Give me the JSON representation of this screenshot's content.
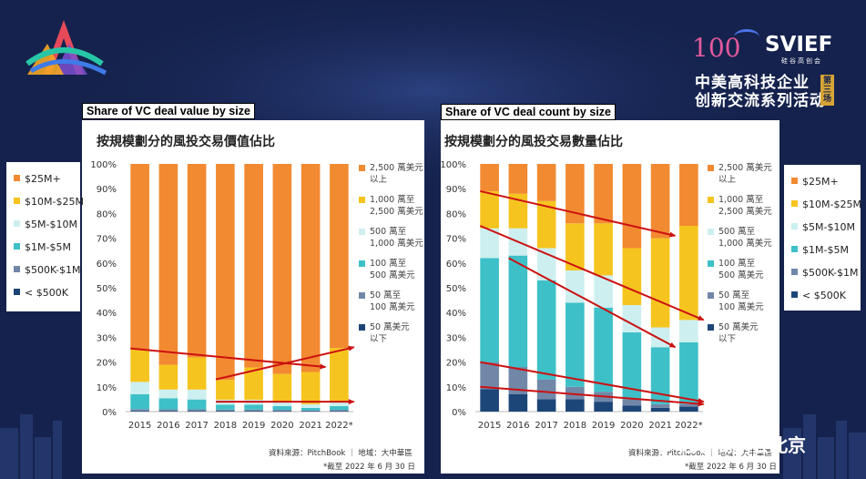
{
  "header": {
    "brand": "SVIEF",
    "brand_cn": "硅谷高创会",
    "badge_num": "100",
    "line1": "中美高科技企业",
    "line2": "创新交流系列活动",
    "session": "第三场"
  },
  "watermark": "硅谷高创会北京",
  "colors": {
    "c25m": "#f28a32",
    "c10m": "#f6c41f",
    "c5m": "#cdeff0",
    "c1m": "#3ec0c8",
    "c500k": "#7087a8",
    "clt500k": "#1d4678",
    "arrow": "#cc1111",
    "navy": "#15224d"
  },
  "legend_en": [
    {
      "label": "$25M+",
      "key": "c25m"
    },
    {
      "label": "$10M-$25M",
      "key": "c10m"
    },
    {
      "label": "$5M-$10M",
      "key": "c5m"
    },
    {
      "label": "$1M-$5M",
      "key": "c1m"
    },
    {
      "label": "$500K-$1M",
      "key": "c500k"
    },
    {
      "label": "< $500K",
      "key": "clt500k"
    }
  ],
  "legend_en_right": [
    {
      "label": "$25M+",
      "key": "c25m"
    },
    {
      "label": "$10M-$25M",
      "key": "c10m"
    },
    {
      "label": "$5M-$10M",
      "key": "c5m"
    },
    {
      "label": "$1M-$5M",
      "key": "c1m"
    },
    {
      "label": "$500K-$1M",
      "key": "c500k"
    },
    {
      "label": "< $500K",
      "key": "clt500k"
    }
  ],
  "legend_cn": [
    {
      "l1": "2,500 萬美元",
      "l2": "以上",
      "key": "c25m"
    },
    {
      "l1": "1,000 萬至",
      "l2": "2,500 萬美元",
      "key": "c10m"
    },
    {
      "l1": "500 萬至",
      "l2": "1,000 萬美元",
      "key": "c5m"
    },
    {
      "l1": "100 萬至",
      "l2": "500 萬美元",
      "key": "c1m"
    },
    {
      "l1": "50 萬至",
      "l2": "100 萬美元",
      "key": "c500k"
    },
    {
      "l1": "50 萬美元",
      "l2": "以下",
      "key": "clt500k"
    }
  ],
  "chart_data": [
    {
      "type": "bar",
      "stacked": true,
      "title": "Share of VC deal value by size",
      "subtitle": "按規模劃分的風投交易價值佔比",
      "categories": [
        "2015",
        "2016",
        "2017",
        "2018",
        "2019",
        "2020",
        "2021",
        "2022*"
      ],
      "ylim": [
        0,
        100
      ],
      "yticks": [
        "0%",
        "10%",
        "20%",
        "30%",
        "40%",
        "50%",
        "60%",
        "70%",
        "80%",
        "90%",
        "100%"
      ],
      "series": [
        {
          "name": "< $500K",
          "key": "clt500k",
          "values": [
            0.3,
            0.3,
            0.3,
            0.3,
            0.3,
            0.3,
            0.2,
            0.3
          ]
        },
        {
          "name": "$500K-$1M",
          "key": "c500k",
          "values": [
            0.7,
            0.6,
            0.6,
            0.5,
            0.5,
            0.4,
            0.3,
            0.4
          ]
        },
        {
          "name": "$1M-$5M",
          "key": "c1m",
          "values": [
            6,
            4.5,
            4,
            2,
            2,
            1.5,
            1,
            1.5
          ]
        },
        {
          "name": "$5M-$10M",
          "key": "c5m",
          "values": [
            5,
            3.5,
            4,
            2,
            2,
            2,
            1.5,
            1.5
          ]
        },
        {
          "name": "$10M-$25M",
          "key": "c10m",
          "values": [
            13,
            10,
            13,
            8,
            13,
            11,
            13,
            22
          ]
        },
        {
          "name": "$25M+",
          "key": "c25m",
          "values": [
            75,
            81.1,
            78.1,
            87.2,
            82.2,
            84.8,
            84,
            74.3
          ]
        }
      ],
      "arrows": [
        {
          "x1": "2015",
          "y1": 25.5,
          "x2": "2021",
          "y2": 18
        },
        {
          "x1": "2018",
          "y1": 13,
          "x2": "2022*",
          "y2": 26
        },
        {
          "x1": "2018",
          "y1": 4,
          "x2": "2022*",
          "y2": 4
        }
      ],
      "source": "資料來源：PitchBook ｜ 地域：大中華區",
      "note": "*截至 2022 年 6 月 30 日"
    },
    {
      "type": "bar",
      "stacked": true,
      "title": "Share of VC deal count by size",
      "subtitle": "按規模劃分的風投交易數量佔比",
      "categories": [
        "2015",
        "2016",
        "2017",
        "2018",
        "2019",
        "2020",
        "2021",
        "2022*"
      ],
      "ylim": [
        0,
        100
      ],
      "yticks": [
        "0%",
        "10%",
        "20%",
        "30%",
        "40%",
        "50%",
        "60%",
        "70%",
        "80%",
        "90%",
        "100%"
      ],
      "series": [
        {
          "name": "< $500K",
          "key": "clt500k",
          "values": [
            9,
            7,
            5,
            5,
            4,
            2.5,
            1.5,
            2
          ]
        },
        {
          "name": "$500K-$1M",
          "key": "c500k",
          "values": [
            11,
            11,
            8,
            5,
            4,
            2.5,
            1.5,
            1
          ]
        },
        {
          "name": "$1M-$5M",
          "key": "c1m",
          "values": [
            42,
            45,
            40,
            34,
            34,
            27,
            23,
            25
          ]
        },
        {
          "name": "$5M-$10M",
          "key": "c5m",
          "values": [
            12,
            11,
            13,
            13,
            13,
            11,
            8,
            9
          ]
        },
        {
          "name": "$10M-$25M",
          "key": "c10m",
          "values": [
            15,
            14,
            19,
            19,
            21,
            23,
            36,
            38
          ]
        },
        {
          "name": "$25M+",
          "key": "c25m",
          "values": [
            11,
            12,
            15,
            24,
            24,
            34,
            30,
            25
          ]
        }
      ],
      "arrows": [
        {
          "x1": "2015",
          "y1": 89,
          "x2": "2021",
          "y2": 71
        },
        {
          "x1": "2015",
          "y1": 75,
          "x2": "2022*",
          "y2": 37
        },
        {
          "x1": "2016",
          "y1": 62,
          "x2": "2021",
          "y2": 26
        },
        {
          "x1": "2015",
          "y1": 20,
          "x2": "2022*",
          "y2": 4
        },
        {
          "x1": "2015",
          "y1": 10,
          "x2": "2022*",
          "y2": 3
        }
      ],
      "source": "資料來源：PitchBook ｜ 地域：大中華區",
      "note": "*截至 2022 年 6 月 30 日"
    }
  ]
}
